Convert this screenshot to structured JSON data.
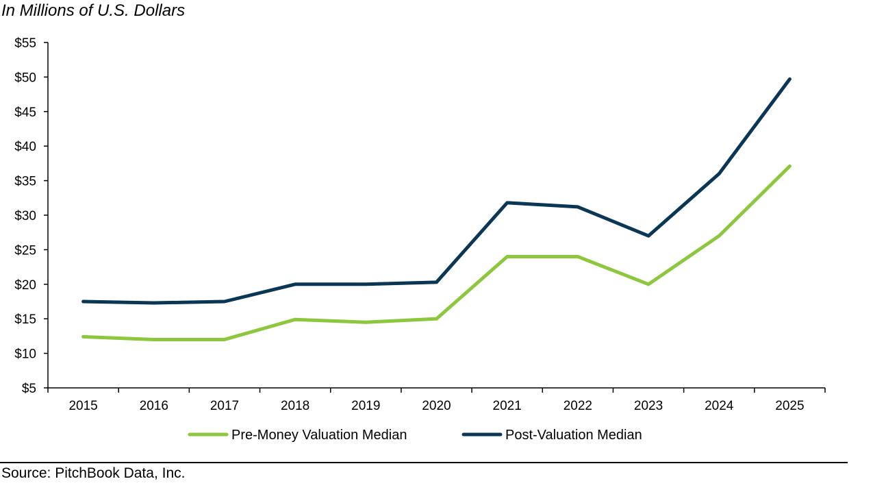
{
  "chart_data": {
    "type": "line",
    "subtitle": "In Millions of U.S. Dollars",
    "categories": [
      "2015",
      "2016",
      "2017",
      "2018",
      "2019",
      "2020",
      "2021",
      "2022",
      "2023",
      "2024",
      "2025"
    ],
    "ylim": [
      5,
      55
    ],
    "yticks": [
      5,
      10,
      15,
      20,
      25,
      30,
      35,
      40,
      45,
      50,
      55
    ],
    "ytick_prefix": "$",
    "xlabel": "",
    "ylabel": "",
    "grid": false,
    "legend_position": "bottom",
    "series": [
      {
        "name": "Pre-Money Valuation Median",
        "color": "#8dc63f",
        "values": [
          12.4,
          12.0,
          12.0,
          14.9,
          14.5,
          15.0,
          24.0,
          24.0,
          20.0,
          27.0,
          37.1
        ]
      },
      {
        "name": "Post-Valuation Median",
        "color": "#0b3654",
        "values": [
          17.5,
          17.3,
          17.5,
          20.0,
          20.0,
          20.3,
          31.8,
          31.2,
          27.0,
          36.0,
          49.7
        ]
      }
    ],
    "source": "Source: PitchBook Data, Inc."
  }
}
